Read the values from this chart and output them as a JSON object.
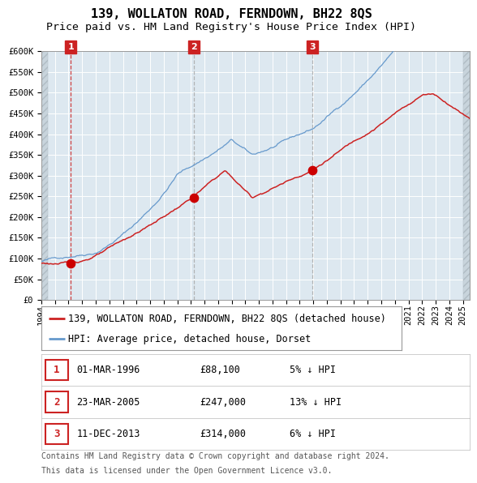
{
  "title": "139, WOLLATON ROAD, FERNDOWN, BH22 8QS",
  "subtitle": "Price paid vs. HM Land Registry's House Price Index (HPI)",
  "legend_label_red": "139, WOLLATON ROAD, FERNDOWN, BH22 8QS (detached house)",
  "legend_label_blue": "HPI: Average price, detached house, Dorset",
  "footer_line1": "Contains HM Land Registry data © Crown copyright and database right 2024.",
  "footer_line2": "This data is licensed under the Open Government Licence v3.0.",
  "transactions": [
    {
      "num": 1,
      "date": "01-MAR-1996",
      "price": 88100,
      "pct": "5%",
      "dir": "↓"
    },
    {
      "num": 2,
      "date": "23-MAR-2005",
      "price": 247000,
      "pct": "13%",
      "dir": "↓"
    },
    {
      "num": 3,
      "date": "11-DEC-2013",
      "price": 314000,
      "pct": "6%",
      "dir": "↓"
    }
  ],
  "sale_dates_decimal": [
    1996.167,
    2005.224,
    2013.951
  ],
  "sale_prices": [
    88100,
    247000,
    314000
  ],
  "vline_colors": [
    "#cc2222",
    "#aaaaaa",
    "#aaaaaa"
  ],
  "ylim": [
    0,
    600000
  ],
  "yticks": [
    0,
    50000,
    100000,
    150000,
    200000,
    250000,
    300000,
    350000,
    400000,
    450000,
    500000,
    550000,
    600000
  ],
  "xlim_min": 1994.0,
  "xlim_max": 2025.5,
  "xtick_years": [
    1994,
    1995,
    1996,
    1997,
    1998,
    1999,
    2000,
    2001,
    2002,
    2003,
    2004,
    2005,
    2006,
    2007,
    2008,
    2009,
    2010,
    2011,
    2012,
    2013,
    2014,
    2015,
    2016,
    2017,
    2018,
    2019,
    2020,
    2021,
    2022,
    2023,
    2024,
    2025
  ],
  "plot_bg_color": "#dde8f0",
  "grid_color": "#ffffff",
  "red_line_color": "#cc2222",
  "blue_line_color": "#6699cc",
  "marker_color": "#cc0000",
  "label_box_color": "#cc2222",
  "title_fontsize": 11,
  "subtitle_fontsize": 9.5,
  "tick_fontsize": 7.5,
  "legend_fontsize": 8.5,
  "table_fontsize": 8.5,
  "footer_fontsize": 7.0
}
